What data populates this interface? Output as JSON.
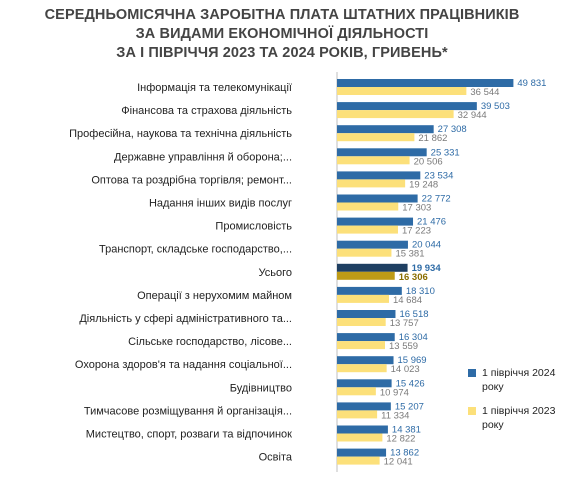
{
  "title_lines": [
    "СЕРЕДНЬОМІСЯЧНА ЗАРОБІТНА ПЛАТА ШТАТНИХ ПРАЦІВНИКІВ",
    "ЗА ВИДАМИ ЕКОНОМІЧНОЇ ДІЯЛЬНОСТІ",
    "ЗА І ПІВРІЧЧЯ 2023 ТА 2024 РОКІВ, ГРИВЕНЬ*"
  ],
  "colors": {
    "series_2024": "#2E6BA6",
    "series_2023": "#FCE07A",
    "total_2024": "#1F3F62",
    "total_2023": "#BE9B16"
  },
  "chart_data": {
    "type": "bar",
    "orientation": "horizontal",
    "title": "СЕРЕДНЬОМІСЯЧНА ЗАРОБІТНА ПЛАТА ШТАТНИХ ПРАЦІВНИКІВ ЗА ВИДАМИ ЕКОНОМІЧНОЇ ДІЯЛЬНОСТІ ЗА І ПІВРІЧЧЯ 2023 ТА 2024 РОКІВ, ГРИВЕНЬ*",
    "categories": [
      "Інформація та телекомунікації",
      "Фінансова та страхова діяльність",
      "Професійна, наукова та технічна діяльність",
      "Державне управління й оборона;...",
      "Оптова та роздрібна торгівля; ремонт...",
      "Надання інших видів послуг",
      "Промисловість",
      "Транспорт, складське господарство,...",
      "Усього",
      "Операції з нерухомим майном",
      "Діяльність у сфері адміністративного та...",
      "Сільське господарство, лісове...",
      "Охорона здоров'я та надання соціальної...",
      "Будівництво",
      "Тимчасове розміщування й організація...",
      "Мистецтво, спорт, розваги та відпочинок",
      "Освіта"
    ],
    "highlight_category": "Усього",
    "series": [
      {
        "name": "1 півріччя 2024 року",
        "values": [
          49831,
          39503,
          27308,
          25331,
          23534,
          22772,
          21476,
          20044,
          19934,
          18310,
          16518,
          16304,
          15969,
          15426,
          15207,
          14381,
          13862
        ],
        "labels": [
          "49 831",
          "39 503",
          "27 308",
          "25 331",
          "23 534",
          "22 772",
          "21 476",
          "20 044",
          "19 934",
          "18 310",
          "16 518",
          "16 304",
          "15 969",
          "15 426",
          "15 207",
          "14 381",
          "13 862"
        ]
      },
      {
        "name": "1 півріччя 2023 року",
        "values": [
          36544,
          32944,
          21862,
          20506,
          19248,
          17303,
          17223,
          15381,
          16306,
          14684,
          13757,
          13559,
          14023,
          10974,
          11334,
          12822,
          12041
        ],
        "labels": [
          "36 544",
          "32 944",
          "21 862",
          "20 506",
          "19 248",
          "17 303",
          "17 223",
          "15 381",
          "16 306",
          "14 684",
          "13 757",
          "13 559",
          "14 023",
          "10 974",
          "11 334",
          "12 822",
          "12 041"
        ]
      }
    ],
    "xlim": [
      0,
      50000
    ],
    "grid": false,
    "legend_position": "right"
  },
  "legend": [
    {
      "label": "1 півріччя 2024 року"
    },
    {
      "label": "1 півріччя 2023 року"
    }
  ]
}
